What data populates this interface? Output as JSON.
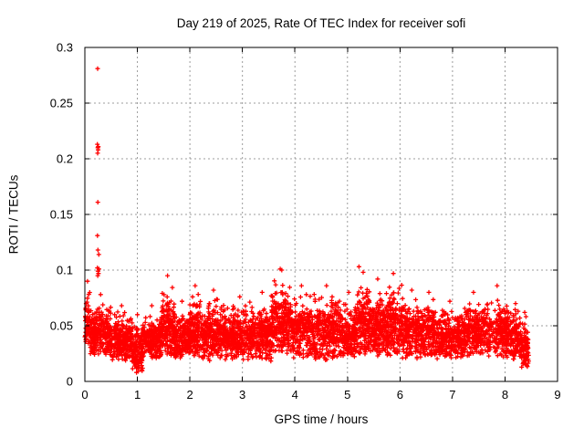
{
  "page": {
    "background_color": "#ffffff",
    "text_color": "#000000"
  },
  "chart_data": {
    "type": "scatter",
    "title": "Day 219 of 2025, Rate Of TEC Index for receiver sofi",
    "xlabel": "GPS time / hours",
    "ylabel": "ROTI / TECUs",
    "xlim": [
      0,
      9
    ],
    "ylim": [
      0,
      0.3
    ],
    "xticks": [
      0,
      1,
      2,
      3,
      4,
      5,
      6,
      7,
      8,
      9
    ],
    "xtick_labels": [
      "0",
      "1",
      "2",
      "3",
      "4",
      "5",
      "6",
      "7",
      "8",
      "9"
    ],
    "yticks": [
      0,
      0.05,
      0.1,
      0.15,
      0.2,
      0.25,
      0.3
    ],
    "ytick_labels": [
      "0",
      "0.05",
      "0.1",
      "0.15",
      "0.2",
      "0.25",
      "0.3"
    ],
    "grid": true,
    "grid_style": "dashed",
    "grid_color": "#9c9c9c",
    "legend": "none",
    "marker": "plus",
    "marker_color": "#ff0000",
    "series_name": "ROTI",
    "time_quantum_hours": 0.008333,
    "seed": 2192025,
    "band_segments": [
      {
        "t0": 0.0,
        "t1": 0.1,
        "min": 0.028,
        "max": 0.09,
        "n": 60
      },
      {
        "t0": 0.1,
        "t1": 0.5,
        "min": 0.022,
        "max": 0.078,
        "n": 260
      },
      {
        "t0": 0.5,
        "t1": 0.9,
        "min": 0.018,
        "max": 0.068,
        "n": 250
      },
      {
        "t0": 0.9,
        "t1": 1.1,
        "min": 0.007,
        "max": 0.06,
        "n": 140
      },
      {
        "t0": 1.1,
        "t1": 1.45,
        "min": 0.02,
        "max": 0.068,
        "n": 220
      },
      {
        "t0": 1.45,
        "t1": 1.7,
        "min": 0.022,
        "max": 0.095,
        "n": 170
      },
      {
        "t0": 1.7,
        "t1": 2.0,
        "min": 0.02,
        "max": 0.072,
        "n": 190
      },
      {
        "t0": 2.0,
        "t1": 2.2,
        "min": 0.02,
        "max": 0.086,
        "n": 140
      },
      {
        "t0": 2.2,
        "t1": 2.7,
        "min": 0.018,
        "max": 0.082,
        "n": 300
      },
      {
        "t0": 2.7,
        "t1": 3.2,
        "min": 0.018,
        "max": 0.076,
        "n": 300
      },
      {
        "t0": 3.2,
        "t1": 3.55,
        "min": 0.018,
        "max": 0.08,
        "n": 210
      },
      {
        "t0": 3.55,
        "t1": 3.95,
        "min": 0.025,
        "max": 0.1,
        "n": 260
      },
      {
        "t0": 3.95,
        "t1": 4.3,
        "min": 0.02,
        "max": 0.086,
        "n": 210
      },
      {
        "t0": 4.3,
        "t1": 4.9,
        "min": 0.018,
        "max": 0.086,
        "n": 350
      },
      {
        "t0": 4.9,
        "t1": 5.15,
        "min": 0.02,
        "max": 0.08,
        "n": 150
      },
      {
        "t0": 5.15,
        "t1": 5.45,
        "min": 0.022,
        "max": 0.098,
        "n": 190
      },
      {
        "t0": 5.45,
        "t1": 5.7,
        "min": 0.022,
        "max": 0.092,
        "n": 160
      },
      {
        "t0": 5.7,
        "t1": 6.05,
        "min": 0.02,
        "max": 0.097,
        "n": 220
      },
      {
        "t0": 6.05,
        "t1": 6.4,
        "min": 0.02,
        "max": 0.082,
        "n": 210
      },
      {
        "t0": 6.4,
        "t1": 6.7,
        "min": 0.02,
        "max": 0.08,
        "n": 180
      },
      {
        "t0": 6.7,
        "t1": 7.2,
        "min": 0.02,
        "max": 0.072,
        "n": 280
      },
      {
        "t0": 7.2,
        "t1": 7.6,
        "min": 0.022,
        "max": 0.08,
        "n": 230
      },
      {
        "t0": 7.6,
        "t1": 8.1,
        "min": 0.02,
        "max": 0.086,
        "n": 280
      },
      {
        "t0": 8.1,
        "t1": 8.3,
        "min": 0.018,
        "max": 0.07,
        "n": 120
      },
      {
        "t0": 8.3,
        "t1": 8.45,
        "min": 0.012,
        "max": 0.062,
        "n": 90
      }
    ],
    "outliers": [
      [
        0.243,
        0.281
      ],
      [
        0.238,
        0.213
      ],
      [
        0.247,
        0.21
      ],
      [
        0.252,
        0.208
      ],
      [
        0.244,
        0.205
      ],
      [
        0.256,
        0.211
      ],
      [
        0.247,
        0.161
      ],
      [
        0.24,
        0.131
      ],
      [
        0.249,
        0.118
      ],
      [
        0.266,
        0.114
      ],
      [
        0.238,
        0.102
      ],
      [
        0.251,
        0.099
      ],
      [
        0.259,
        0.097
      ],
      [
        0.268,
        0.101
      ],
      [
        0.245,
        0.095
      ],
      [
        3.72,
        0.101
      ],
      [
        5.22,
        0.103
      ]
    ]
  }
}
